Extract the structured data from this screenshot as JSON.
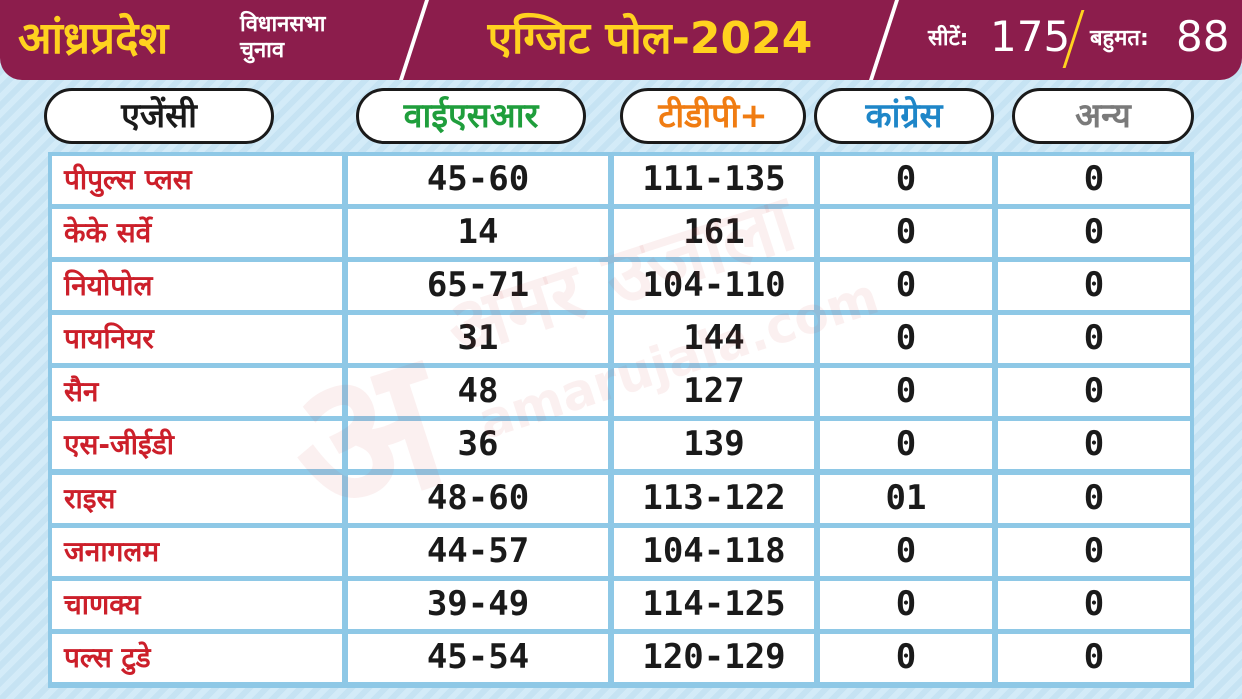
{
  "header": {
    "state": "आंध्रप्रदेश",
    "sub_line1": "विधानसभा",
    "sub_line2": "चुनाव",
    "title": "एग्जिट पोल-2024",
    "seats_label": "सीटें:",
    "seats_value": "175",
    "majority_label": "बहुमत:",
    "majority_value": "88"
  },
  "columns": {
    "agency": "एजेंसी",
    "ysr": "वाईएसआर",
    "tdp": "टीडीपी+",
    "congress": "कांग्रेस",
    "others": "अन्य"
  },
  "colors": {
    "header_bg": "#8c1d4c",
    "header_accent": "#ffd21f",
    "ysr": "#1f9e3c",
    "tdp": "#f07c12",
    "congress": "#1e86c8",
    "others": "#7a7a7a",
    "agency_text": "#cc1f2a"
  },
  "rows": [
    {
      "agency": "पीपुल्स प्लस",
      "ysr": "45-60",
      "tdp": "111-135",
      "congress": "0",
      "others": "0"
    },
    {
      "agency": "केके सर्वे",
      "ysr": "14",
      "tdp": "161",
      "congress": "0",
      "others": "0"
    },
    {
      "agency": "नियोपोल",
      "ysr": "65-71",
      "tdp": "104-110",
      "congress": "0",
      "others": "0"
    },
    {
      "agency": "पायनियर",
      "ysr": "31",
      "tdp": "144",
      "congress": "0",
      "others": "0"
    },
    {
      "agency": "सैन",
      "ysr": "48",
      "tdp": "127",
      "congress": "0",
      "others": "0"
    },
    {
      "agency": "एस-जीईडी",
      "ysr": "36",
      "tdp": "139",
      "congress": "0",
      "others": "0"
    },
    {
      "agency": "राइस",
      "ysr": "48-60",
      "tdp": "113-122",
      "congress": "01",
      "others": "0"
    },
    {
      "agency": "जनागलम",
      "ysr": "44-57",
      "tdp": "104-118",
      "congress": "0",
      "others": "0"
    },
    {
      "agency": "चाणक्य",
      "ysr": "39-49",
      "tdp": "114-125",
      "congress": "0",
      "others": "0"
    },
    {
      "agency": "पल्स टुडे",
      "ysr": "45-54",
      "tdp": "120-129",
      "congress": "0",
      "others": "0"
    }
  ],
  "watermark": {
    "logo_letter": "अ",
    "brand": "अमर उजाला",
    "site": "amarujala.com"
  }
}
